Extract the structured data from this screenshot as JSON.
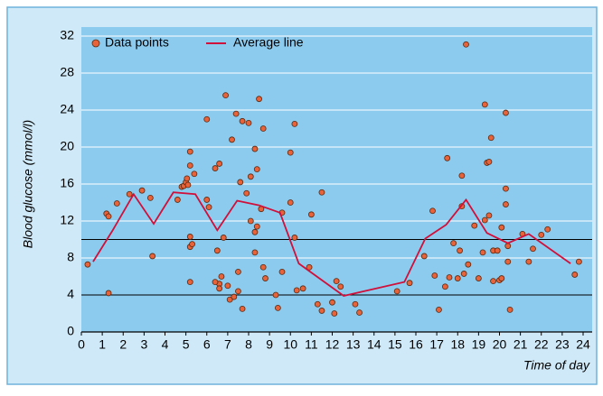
{
  "chart_data": {
    "type": "scatter",
    "ylabel": "Blood glucose (mmol/l)",
    "xlabel": "Time of day",
    "xlim": [
      0,
      24
    ],
    "ylim": [
      0,
      32
    ],
    "xticks": [
      0,
      1,
      2,
      3,
      4,
      5,
      6,
      7,
      8,
      9,
      10,
      11,
      12,
      13,
      14,
      15,
      16,
      17,
      18,
      19,
      20,
      21,
      22,
      23,
      24
    ],
    "yticks": [
      0,
      4,
      8,
      12,
      16,
      20,
      24,
      28,
      32
    ],
    "grid": true,
    "hlines": [
      4,
      10
    ],
    "legend": "top-left",
    "series": [
      {
        "name": "Data points",
        "type": "scatter",
        "color": "#e8623a",
        "x": [
          0.3,
          1.2,
          1.3,
          1.3,
          1.7,
          2.3,
          2.9,
          3.3,
          3.4,
          4.6,
          4.8,
          4.9,
          5.0,
          5.05,
          5.1,
          5.2,
          5.2,
          5.2,
          5.2,
          5.3,
          5.2,
          5.4,
          6.0,
          6.0,
          6.1,
          6.4,
          6.5,
          6.6,
          6.6,
          6.4,
          6.6,
          6.7,
          6.8,
          6.9,
          7.0,
          7.1,
          7.2,
          7.3,
          7.4,
          7.5,
          7.5,
          7.6,
          7.7,
          7.7,
          7.9,
          8.0,
          8.1,
          8.1,
          8.3,
          8.3,
          8.3,
          8.4,
          8.4,
          8.5,
          8.6,
          8.7,
          8.7,
          8.8,
          9.3,
          9.4,
          9.6,
          9.6,
          10.0,
          10.0,
          10.2,
          10.2,
          10.3,
          10.6,
          10.9,
          11.0,
          11.3,
          11.5,
          11.5,
          12.0,
          12.1,
          12.2,
          12.4,
          13.1,
          13.3,
          15.1,
          15.7,
          16.4,
          16.8,
          16.9,
          17.1,
          17.4,
          17.5,
          17.6,
          17.8,
          18.0,
          18.1,
          18.2,
          18.2,
          18.3,
          18.4,
          18.5,
          18.8,
          19.0,
          19.2,
          19.3,
          19.3,
          19.4,
          19.5,
          19.5,
          19.6,
          19.7,
          19.7,
          19.9,
          20.0,
          20.1,
          20.1,
          20.3,
          20.3,
          20.3,
          20.4,
          20.4,
          20.5,
          21.1,
          21.4,
          21.6,
          22.0,
          22.3,
          23.6,
          23.8
        ],
        "values": [
          7.3,
          12.8,
          12.5,
          4.2,
          13.9,
          14.9,
          15.3,
          14.5,
          8.2,
          14.3,
          15.7,
          15.8,
          16.2,
          16.6,
          15.9,
          19.5,
          18.0,
          10.3,
          9.2,
          9.5,
          5.4,
          17.1,
          23.0,
          14.3,
          13.5,
          17.7,
          8.8,
          18.2,
          5.2,
          5.4,
          4.7,
          6.0,
          10.2,
          25.6,
          5.0,
          3.5,
          20.8,
          3.8,
          23.6,
          4.4,
          6.5,
          16.2,
          22.8,
          2.5,
          15.0,
          22.6,
          12.0,
          16.8,
          19.8,
          10.8,
          8.6,
          11.4,
          17.6,
          25.2,
          13.3,
          22.0,
          7.0,
          5.8,
          4.0,
          2.6,
          6.5,
          12.9,
          19.4,
          14.0,
          22.5,
          10.2,
          4.5,
          4.7,
          7.0,
          12.7,
          3.0,
          15.1,
          2.3,
          3.2,
          2.0,
          5.5,
          4.9,
          3.0,
          2.1,
          4.4,
          5.3,
          8.2,
          13.1,
          6.1,
          2.4,
          4.9,
          18.8,
          5.9,
          9.6,
          5.8,
          8.8,
          13.6,
          16.9,
          6.3,
          31.1,
          7.3,
          11.5,
          5.8,
          8.6,
          24.6,
          12.1,
          18.3,
          18.4,
          12.6,
          21.0,
          8.8,
          5.5,
          8.8,
          5.6,
          11.3,
          5.8,
          15.5,
          13.8,
          23.7,
          9.3,
          7.6,
          2.4,
          10.6,
          7.6,
          9.0,
          10.5,
          11.1,
          6.2,
          7.6
        ]
      },
      {
        "name": "Average line",
        "type": "line",
        "color": "#d0103a",
        "x": [
          0.56,
          1.5,
          2.5,
          3.46,
          4.4,
          5.45,
          6.5,
          7.45,
          8.5,
          9.5,
          10.4,
          12.55,
          15.45,
          16.45,
          17.45,
          18.4,
          19.4,
          20.4,
          21.4,
          23.4
        ],
        "values": [
          7.6,
          11.0,
          14.9,
          11.7,
          15.1,
          14.9,
          11.0,
          14.2,
          13.7,
          12.9,
          7.4,
          3.9,
          5.4,
          10.1,
          11.6,
          14.3,
          10.7,
          9.6,
          10.6,
          7.4
        ]
      }
    ]
  }
}
